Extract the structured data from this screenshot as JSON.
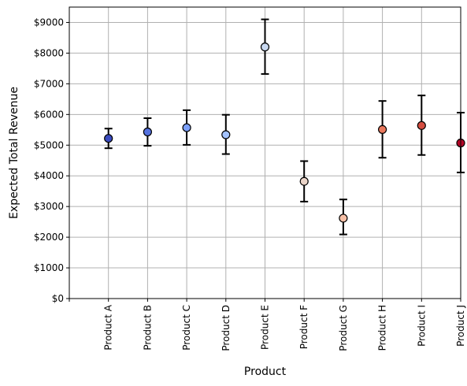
{
  "chart_data": {
    "type": "scatter",
    "xlabel": "Product",
    "ylabel": "Expected Total Revenue",
    "categories": [
      "Product A",
      "Product B",
      "Product C",
      "Product D",
      "Product E",
      "Product F",
      "Product G",
      "Product H",
      "Product I",
      "Product J"
    ],
    "values": [
      5220,
      5430,
      5570,
      5340,
      8200,
      3820,
      2620,
      5510,
      5640,
      5070
    ],
    "error_low": [
      4900,
      4980,
      5010,
      4710,
      7320,
      3160,
      2090,
      4590,
      4680,
      4110
    ],
    "error_high": [
      5540,
      5880,
      6140,
      5990,
      9100,
      4480,
      3230,
      6440,
      6620,
      6060
    ],
    "marker_colors": [
      "#3b4cc0",
      "#5572df",
      "#7b9ff9",
      "#a3c2fe",
      "#c8d8f0",
      "#ead4c8",
      "#f6bfa6",
      "#e9785d",
      "#d34d40",
      "#b40426"
    ],
    "ylim": [
      0,
      9500
    ],
    "yticks": [
      0,
      1000,
      2000,
      3000,
      4000,
      5000,
      6000,
      7000,
      8000,
      9000
    ],
    "ytick_labels": [
      "$0",
      "$1000",
      "$2000",
      "$3000",
      "$4000",
      "$5000",
      "$6000",
      "$7000",
      "$8000",
      "$9000"
    ],
    "grid": true,
    "legend": "none"
  }
}
